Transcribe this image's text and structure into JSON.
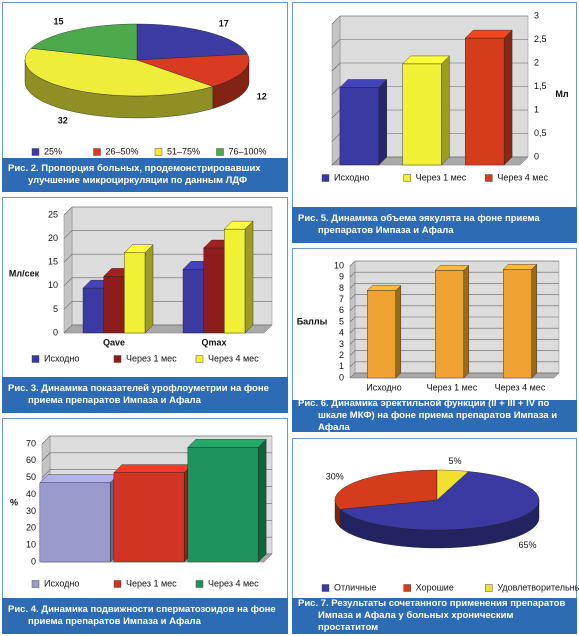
{
  "chart_data": [
    {
      "type": "pie",
      "title": "Рис. 2. Пропорция больных, продемонстрировавших улучшение микроциркуляции по данным ЛДФ",
      "categories": [
        "25%",
        "26–50%",
        "51–75%",
        "76–100%"
      ],
      "values": [
        17,
        12,
        32,
        15
      ],
      "colors": [
        "#3c3ca4",
        "#d83a22",
        "#eeee3a",
        "#4caa4c"
      ]
    },
    {
      "type": "bar",
      "title": "Рис. 3. Динамика показателей урофлоуметрии на фоне приема препаратов Импаза и Афала",
      "ylabel": "Мл/сек",
      "categories": [
        "Qave",
        "Qmax"
      ],
      "series": [
        {
          "name": "Исходно",
          "color": "#3a3aa2",
          "values": [
            9.5,
            13.5
          ]
        },
        {
          "name": "Через 1 мес",
          "color": "#8e1c1c",
          "values": [
            12,
            18
          ]
        },
        {
          "name": "Через 4 мес",
          "color": "#f0f034",
          "values": [
            17,
            22
          ]
        }
      ],
      "ylim": [
        0,
        25
      ],
      "yticks": [
        0,
        5,
        10,
        15,
        20,
        25
      ]
    },
    {
      "type": "bar",
      "title": "Рис. 4. Динамика подвижности сперматозоидов на фоне приема препаратов Импаза и Афала",
      "ylabel": "%",
      "categories": [
        "Исходно",
        "Через 1 мес",
        "Через 4 мес"
      ],
      "values": [
        47,
        53,
        68
      ],
      "colors": [
        "#9a9acc",
        "#d23424",
        "#20925e"
      ],
      "ylim": [
        0,
        70
      ],
      "yticks": [
        0,
        10,
        20,
        30,
        40,
        50,
        60,
        70
      ]
    },
    {
      "type": "bar",
      "title": "Рис. 5. Динамика объема эякулята на фоне приема препаратов Импаза и Афала",
      "ylabel": "Мл",
      "yaxis_position": "right",
      "categories": [
        "Исходно",
        "Через 1 мес",
        "Через 4 мес"
      ],
      "values": [
        1.65,
        2.15,
        2.7
      ],
      "colors": [
        "#3a3aa2",
        "#f0f034",
        "#d43c1c"
      ],
      "ylim": [
        0,
        3
      ],
      "yticks": [
        0,
        {
          "value": 0.5,
          "label": "0,5"
        },
        1,
        {
          "value": 1.5,
          "label": "1,5"
        },
        2,
        {
          "value": 2.5,
          "label": "2,5"
        },
        3
      ]
    },
    {
      "type": "bar",
      "title": "Рис. 6. Динамика эректильной функции (II + III + IV по шкале МКФ) на фоне приема препаратов Импаза и Афала",
      "ylabel": "Баллы",
      "categories": [
        "Исходно",
        "Через 1 мес",
        "Через 4 мес"
      ],
      "values": [
        7.8,
        9.6,
        9.7
      ],
      "color": "#f0a232",
      "ylim": [
        0,
        10
      ],
      "yticks": [
        0,
        1,
        2,
        3,
        4,
        5,
        6,
        7,
        8,
        9,
        10
      ]
    },
    {
      "type": "pie",
      "title": "Рис. 7. Результаты сочетанного применения препаратов Импаза и Афала у больных хроническим простатитом",
      "categories": [
        "Отличные",
        "Хорошие",
        "Удовлетворительные"
      ],
      "values": [
        65,
        30,
        5
      ],
      "value_labels": [
        "65%",
        "30%",
        "5%"
      ],
      "colors": [
        "#3a3aa2",
        "#d43c1c",
        "#f0e030"
      ]
    }
  ]
}
